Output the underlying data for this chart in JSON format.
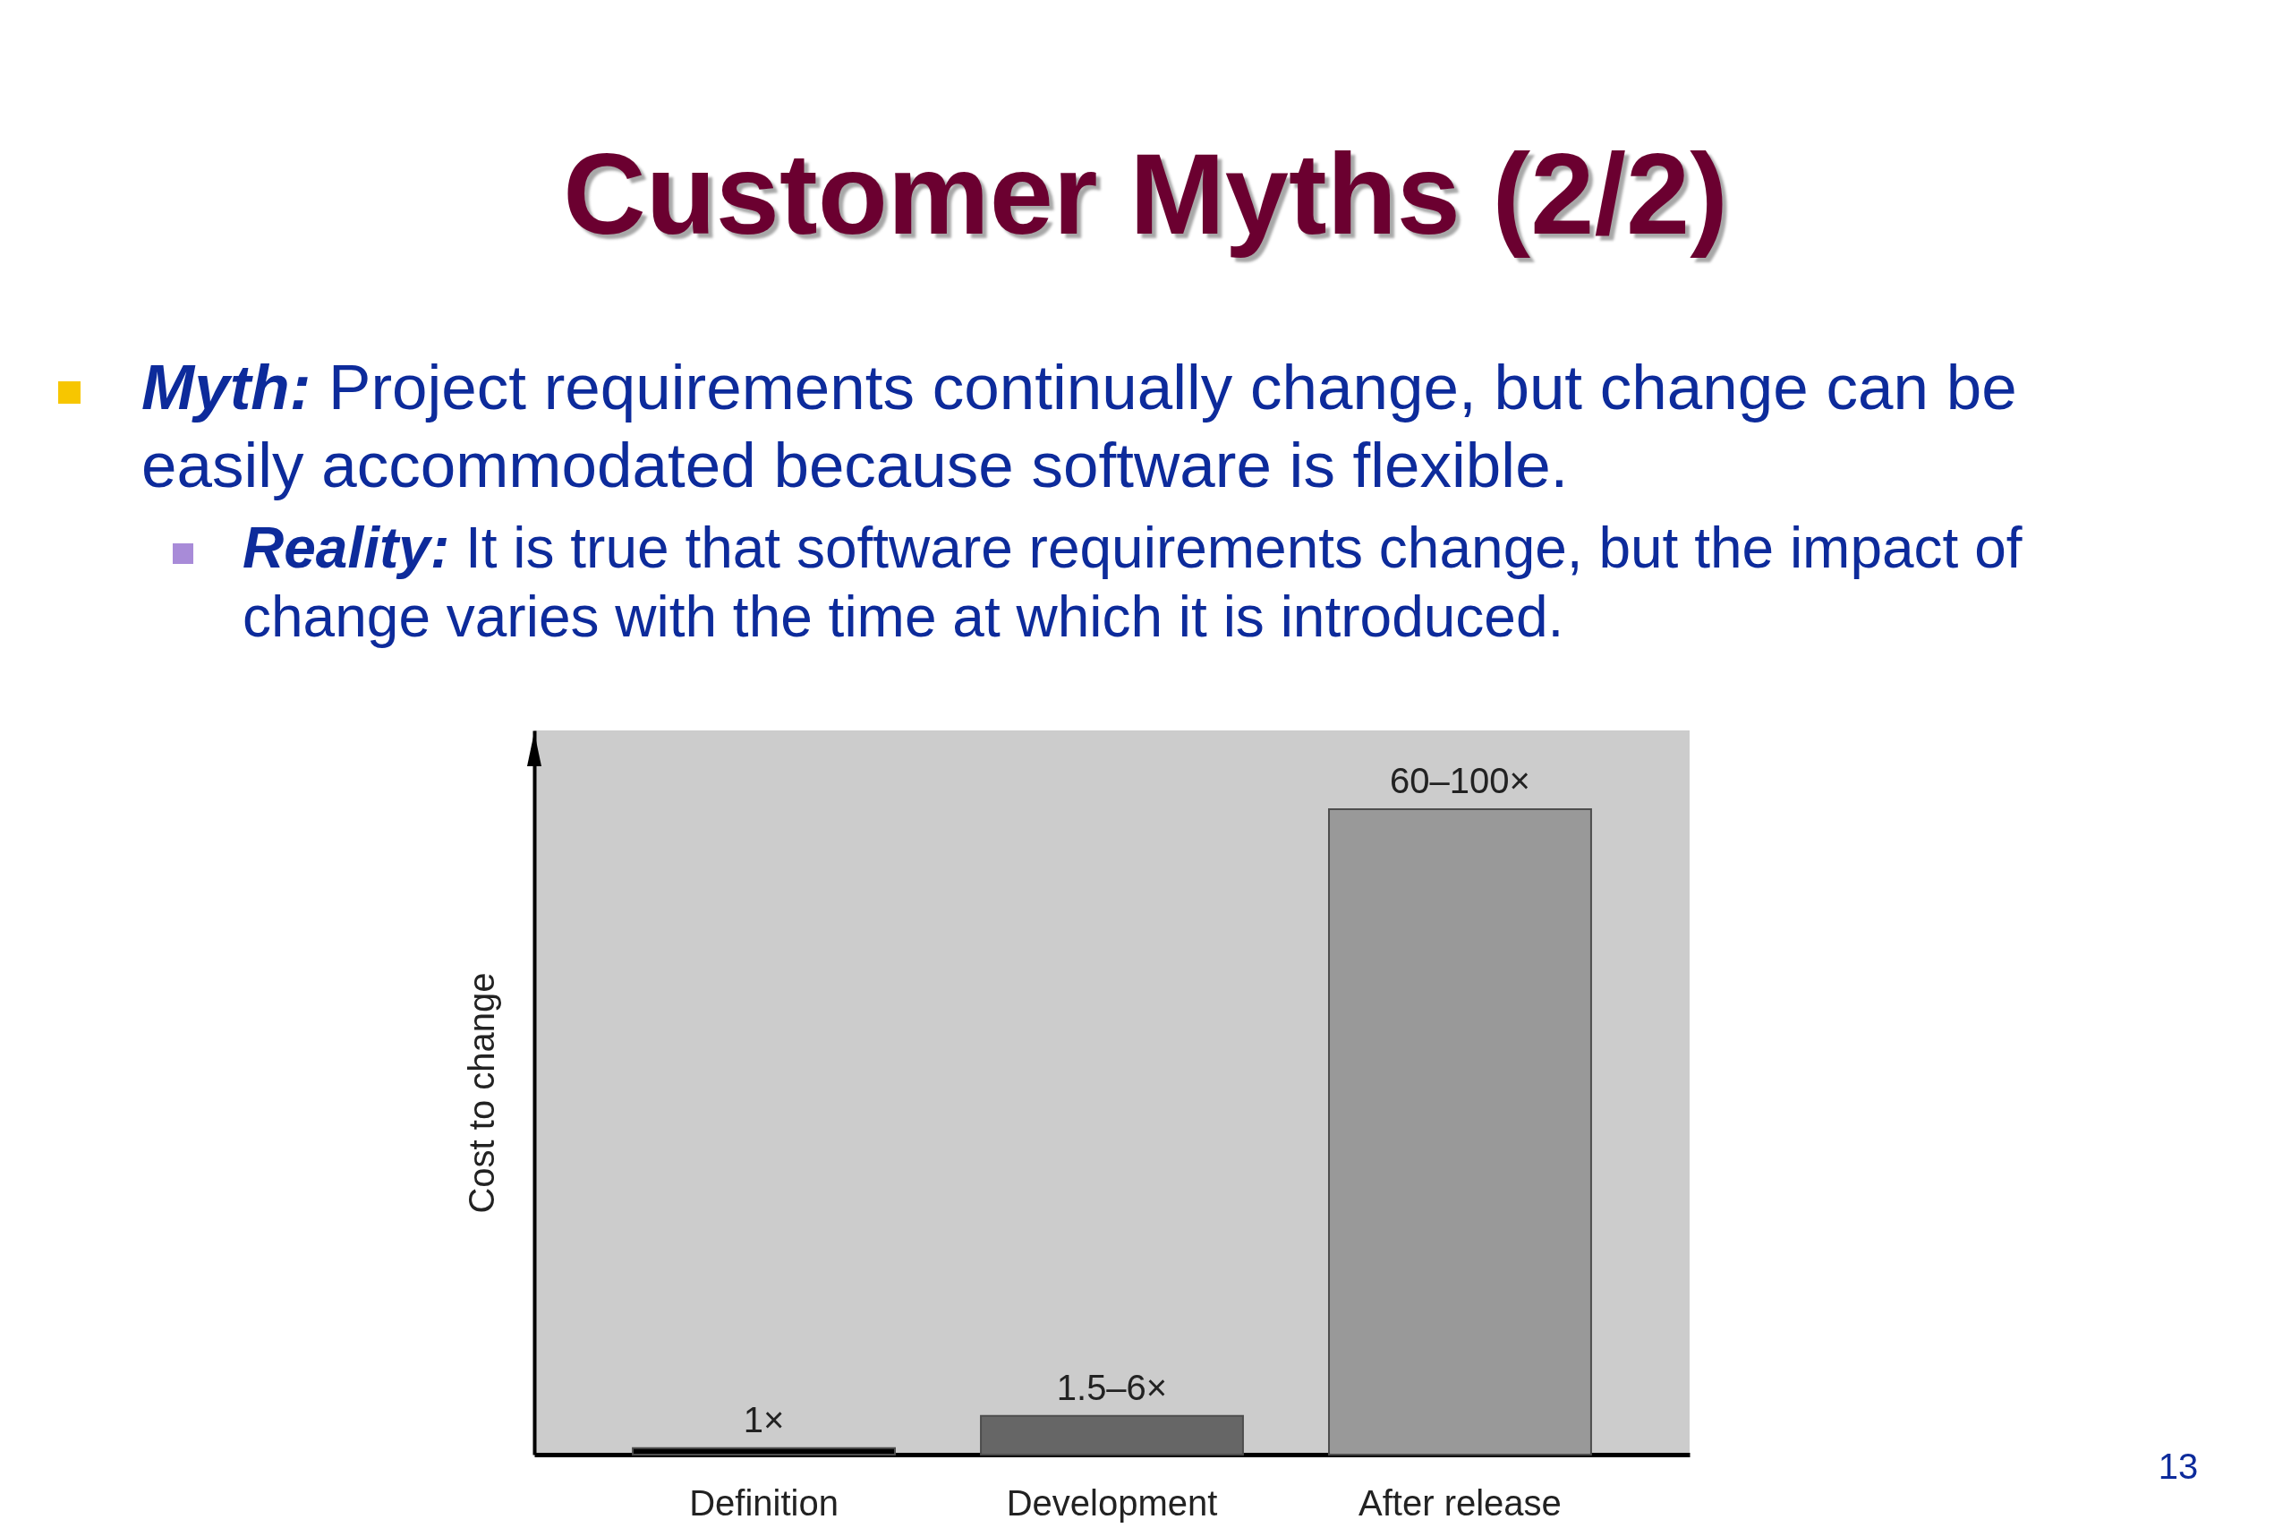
{
  "chart_data": {
    "type": "bar",
    "title": "Customer Myths (2/2)",
    "ylabel": "Cost to change",
    "categories": [
      "Definition",
      "Development",
      "After release"
    ],
    "values": [
      1,
      6,
      100
    ],
    "colors": [
      "#000000",
      "#666666",
      "#999999"
    ],
    "value_labels": [
      "1×",
      "1.5–6×",
      "60–100×"
    ],
    "annotations": [
      "Myth: Project requirements continually change, but change can be easily accommodated because software is flexible.",
      "Reality: It is true that software requirements change, but the impact of change varies with the time at which it is introduced.",
      "13"
    ]
  }
}
